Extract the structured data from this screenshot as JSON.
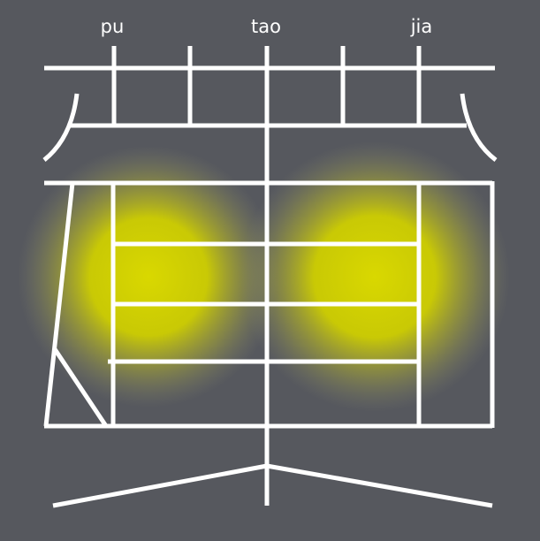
{
  "labels": {
    "left": "pu",
    "center": "tao",
    "right": "jia"
  },
  "colors": {
    "background": "#56585e",
    "stroke": "#ffffff",
    "glow": "#d4d400"
  }
}
